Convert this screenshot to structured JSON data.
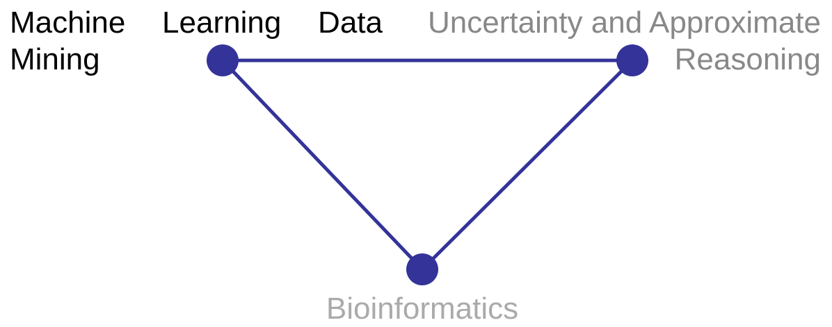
{
  "nodes": [
    {
      "label": "Machine Learning Data Mining"
    },
    {
      "label": "Uncertainty and Approximate Reasoning"
    },
    {
      "label": "Bioinformatics"
    }
  ]
}
